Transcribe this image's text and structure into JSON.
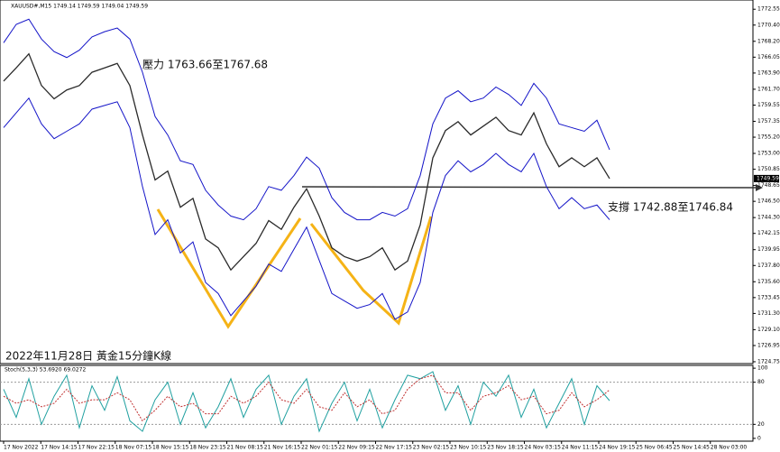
{
  "chart_data": {
    "type": "line",
    "header": "XAUUSD#,M15  1749.14 1749.59 1749.04 1749.59",
    "annotations": [
      "壓力 1763.66至1767.68",
      "支撐 1742.88至1746.84",
      "2022年11月28日 黃金15分鐘K線"
    ],
    "time_labels": [
      "17 Nov 2022",
      "17 Nov 14:15",
      "17 Nov 22:15",
      "18 Nov 07:15",
      "18 Nov 15:15",
      "18 Nov 23:15",
      "21 Nov 08:15",
      "21 Nov 16:15",
      "22 Nov 01:15",
      "22 Nov 09:15",
      "22 Nov 17:15",
      "23 Nov 02:15",
      "23 Nov 10:15",
      "23 Nov 18:15",
      "24 Nov 03:15",
      "24 Nov 11:15",
      "24 Nov 19:15",
      "25 Nov 06:45",
      "25 Nov 14:45",
      "28 Nov 03:00"
    ],
    "series": [
      {
        "name": "price",
        "color": "#2a2a2a",
        "values": [
          1762.8,
          1764.6,
          1766.5,
          1762.2,
          1760.4,
          1761.6,
          1762.2,
          1764.0,
          1764.6,
          1765.2,
          1762.2,
          1755.5,
          1749.4,
          1750.6,
          1745.7,
          1746.9,
          1741.4,
          1740.2,
          1737.2,
          1739.0,
          1740.8,
          1743.9,
          1742.7,
          1745.7,
          1748.2,
          1744.5,
          1740.2,
          1739.0,
          1738.4,
          1739.0,
          1740.2,
          1737.2,
          1738.4,
          1743.3,
          1752.4,
          1756.1,
          1757.3,
          1755.5,
          1756.7,
          1757.9,
          1756.1,
          1755.5,
          1758.5,
          1754.3,
          1751.2,
          1752.4,
          1751.2,
          1752.4,
          1749.59
        ]
      },
      {
        "name": "upper",
        "color": "#1414c8",
        "values": [
          1768.0,
          1770.5,
          1771.2,
          1768.5,
          1766.8,
          1766.0,
          1767.0,
          1768.8,
          1769.5,
          1770.0,
          1768.5,
          1764.0,
          1758.0,
          1755.5,
          1752.0,
          1751.5,
          1748.0,
          1746.0,
          1744.5,
          1744.0,
          1745.5,
          1748.5,
          1748.0,
          1750.0,
          1752.5,
          1751.0,
          1747.0,
          1745.0,
          1744.0,
          1744.0,
          1745.0,
          1744.5,
          1745.5,
          1750.0,
          1757.0,
          1760.5,
          1761.5,
          1760.0,
          1760.5,
          1762.0,
          1761.0,
          1759.5,
          1762.5,
          1760.5,
          1757.0,
          1756.5,
          1756.0,
          1757.5,
          1753.5
        ]
      },
      {
        "name": "lower",
        "color": "#1414c8",
        "values": [
          1756.5,
          1758.5,
          1760.5,
          1757.0,
          1755.0,
          1756.0,
          1757.0,
          1759.0,
          1759.5,
          1760.0,
          1756.5,
          1748.5,
          1742.0,
          1744.0,
          1739.5,
          1741.0,
          1735.5,
          1734.0,
          1731.0,
          1733.0,
          1735.0,
          1738.0,
          1737.0,
          1740.0,
          1743.0,
          1738.5,
          1734.0,
          1733.0,
          1732.0,
          1732.5,
          1734.0,
          1730.5,
          1731.5,
          1735.5,
          1745.0,
          1750.0,
          1752.0,
          1750.5,
          1751.5,
          1753.0,
          1751.5,
          1750.5,
          1753.0,
          1748.5,
          1745.5,
          1747.0,
          1745.5,
          1746.0,
          1744.0
        ]
      },
      {
        "name": "stoch_main",
        "color": "#20a0a0",
        "values": [
          70,
          30,
          85,
          20,
          60,
          90,
          15,
          75,
          40,
          88,
          25,
          10,
          55,
          80,
          20,
          65,
          15,
          45,
          85,
          30,
          70,
          90,
          20,
          60,
          85,
          10,
          50,
          80,
          25,
          70,
          15,
          55,
          90,
          85,
          95,
          40,
          75,
          20,
          80,
          60,
          90,
          30,
          70,
          15,
          50,
          85,
          20,
          75,
          53.692
        ]
      },
      {
        "name": "stoch_signal",
        "color": "#c03030",
        "values": [
          60,
          50,
          55,
          45,
          50,
          70,
          50,
          55,
          55,
          65,
          55,
          25,
          40,
          60,
          45,
          50,
          35,
          35,
          60,
          50,
          60,
          80,
          55,
          50,
          70,
          45,
          40,
          65,
          45,
          55,
          35,
          40,
          70,
          85,
          90,
          65,
          65,
          40,
          60,
          65,
          75,
          55,
          60,
          35,
          40,
          65,
          45,
          55,
          69.0272
        ]
      }
    ],
    "ylim": [
      1724.5,
      1773.8
    ],
    "yticks": [
      1772.55,
      {
        "value": 1770.4,
        "label": "1770.40"
      },
      {
        "value": 1768.2,
        "label": "1768.20"
      },
      1766.05,
      {
        "value": 1763.9,
        "label": "1763.90"
      },
      {
        "value": 1761.7,
        "label": "1761.70"
      },
      1759.55,
      1757.35,
      {
        "value": 1755.2,
        "label": "1755.20"
      },
      {
        "value": 1753,
        "label": "1753.00"
      },
      1750.85,
      1748.65,
      {
        "value": 1746.5,
        "label": "1746.50"
      },
      {
        "value": 1744.3,
        "label": "1744.30"
      },
      1742.15,
      1739.95,
      {
        "value": 1737.8,
        "label": "1737.80"
      },
      {
        "value": 1735.6,
        "label": "1735.60"
      },
      1733.45,
      {
        "value": 1731.3,
        "label": "1731.30"
      },
      {
        "value": 1729.1,
        "label": "1729.10"
      },
      1726.95,
      1724.75
    ],
    "last_price": 1749.59,
    "stoch_title": "Stoch(5,3,3) 53.6920 69.0272",
    "y2lim": [
      -4,
      104
    ],
    "y2ticks": [
      100,
      80,
      20,
      0
    ]
  }
}
